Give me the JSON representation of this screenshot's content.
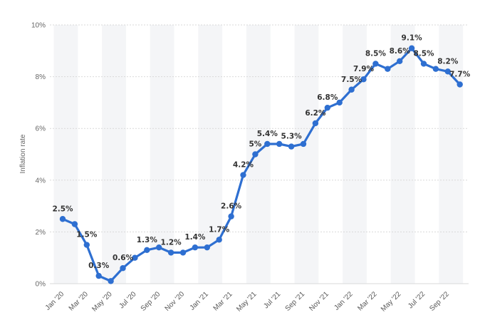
{
  "chart_data": {
    "type": "line",
    "title": "",
    "xlabel": "",
    "ylabel": "Inflation rate",
    "ylim": [
      0,
      10
    ],
    "y_ticks": [
      "0%",
      "2%",
      "4%",
      "6%",
      "8%",
      "10%"
    ],
    "y_tick_values": [
      0,
      2,
      4,
      6,
      8,
      10
    ],
    "grid": "vertical-bands-and-horizontal-dashed",
    "legend": "none",
    "x": [
      "Jan '20",
      "Feb '20",
      "Mar '20",
      "Apr '20",
      "May '20",
      "Jun '20",
      "Jul '20",
      "Aug '20",
      "Sep '20",
      "Oct '20",
      "Nov '20",
      "Dec '20",
      "Jan '21",
      "Feb '21",
      "Mar '21",
      "Apr '21",
      "May '21",
      "Jun '21",
      "Jul '21",
      "Aug '21",
      "Sep '21",
      "Oct '21",
      "Nov '21",
      "Dec '21",
      "Jan '22",
      "Feb '22",
      "Mar '22",
      "Apr '22",
      "May '22",
      "Jun '22",
      "Jul '22",
      "Aug '22",
      "Sep '22",
      "Oct '22"
    ],
    "x_tick_labels": [
      "Jan '20",
      "Mar '20",
      "May '20",
      "Jul '20",
      "Sep '20",
      "Nov '20",
      "Jan '21",
      "Mar '21",
      "May '21",
      "Jul '21",
      "Sep '21",
      "Nov '21",
      "Jan '22",
      "Mar '22",
      "May '22",
      "Jul '22",
      "Sep '22"
    ],
    "series": [
      {
        "values": [
          2.5,
          2.3,
          1.5,
          0.3,
          0.1,
          0.6,
          1.0,
          1.3,
          1.4,
          1.2,
          1.2,
          1.4,
          1.4,
          1.7,
          2.6,
          4.2,
          5.0,
          5.4,
          5.4,
          5.3,
          5.4,
          6.2,
          6.8,
          7.0,
          7.5,
          7.9,
          8.5,
          8.3,
          8.6,
          9.1,
          8.5,
          8.3,
          8.2,
          7.7
        ],
        "data_labels": [
          "2.5%",
          "",
          "1.5%",
          "0.3%",
          "",
          "0.6%",
          "",
          "1.3%",
          "",
          "1.2%",
          "",
          "1.4%",
          "",
          "1.7%",
          "2.6%",
          "4.2%",
          "5%",
          "5.4%",
          "",
          "5.3%",
          "",
          "6.2%",
          "6.8%",
          "",
          "7.5%",
          "7.9%",
          "8.5%",
          "",
          "8.6%",
          "9.1%",
          "8.5%",
          "",
          "8.2%",
          "7.7%"
        ],
        "color": "#2e6fd1"
      }
    ]
  }
}
